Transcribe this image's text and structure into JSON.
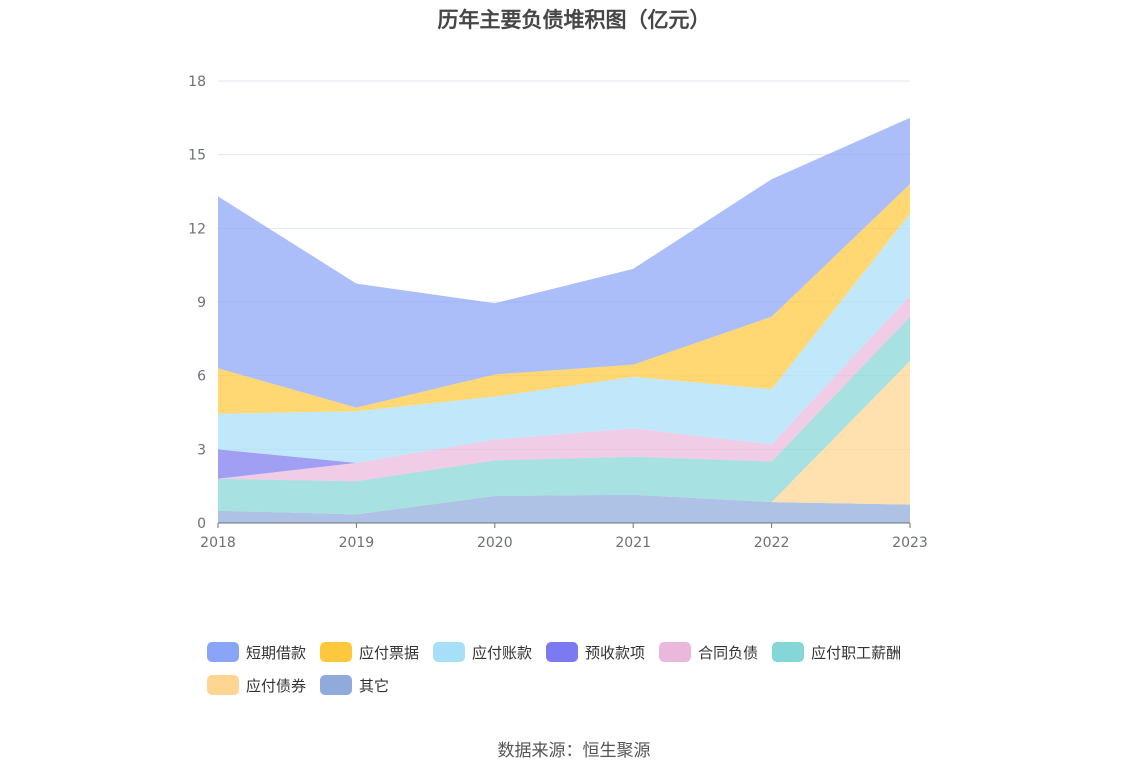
{
  "chart_data": {
    "type": "area",
    "stacked": true,
    "title": "历年主要负债堆积图（亿元）",
    "x": [
      "2018",
      "2019",
      "2020",
      "2021",
      "2022",
      "2023"
    ],
    "ylim": [
      0,
      18
    ],
    "yticks": [
      "0",
      "3",
      "6",
      "9",
      "12",
      "15",
      "18"
    ],
    "grid": true,
    "legend_position": "bottom",
    "series": [
      {
        "name": "其它",
        "color": "#8fabdb",
        "values": [
          0.5,
          0.35,
          1.1,
          1.15,
          0.85,
          0.75
        ]
      },
      {
        "name": "应付债券",
        "color": "#ffd592",
        "values": [
          0,
          0,
          0,
          0,
          0,
          5.85
        ]
      },
      {
        "name": "应付职工薪酬",
        "color": "#85d6d6",
        "values": [
          1.3,
          1.35,
          1.45,
          1.55,
          1.65,
          1.8
        ]
      },
      {
        "name": "合同负债",
        "color": "#eab8dc",
        "values": [
          0,
          0.75,
          0.85,
          1.15,
          0.7,
          0.85
        ]
      },
      {
        "name": "预收款项",
        "color": "#7b7af0",
        "values": [
          1.2,
          0,
          0,
          0,
          0,
          0
        ]
      },
      {
        "name": "应付账款",
        "color": "#a8dff8",
        "values": [
          1.45,
          2.1,
          1.75,
          2.1,
          2.25,
          3.35
        ]
      },
      {
        "name": "应付票据",
        "color": "#ffc73d",
        "values": [
          1.85,
          0.15,
          0.9,
          0.5,
          2.95,
          1.2
        ]
      },
      {
        "name": "短期借款",
        "color": "#8aa5f8",
        "values": [
          7.0,
          5.05,
          2.9,
          3.9,
          5.6,
          2.7
        ]
      }
    ]
  },
  "legend": [
    {
      "name": "短期借款",
      "color": "#8aa5f8"
    },
    {
      "name": "应付票据",
      "color": "#ffc73d"
    },
    {
      "name": "应付账款",
      "color": "#a8dff8"
    },
    {
      "name": "预收款项",
      "color": "#7b7af0"
    },
    {
      "name": "合同负债",
      "color": "#eab8dc"
    },
    {
      "name": "应付职工薪酬",
      "color": "#85d6d6"
    },
    {
      "name": "应付债券",
      "color": "#ffd592"
    },
    {
      "name": "其它",
      "color": "#8fabdb"
    }
  ],
  "source": "数据来源：恒生聚源"
}
